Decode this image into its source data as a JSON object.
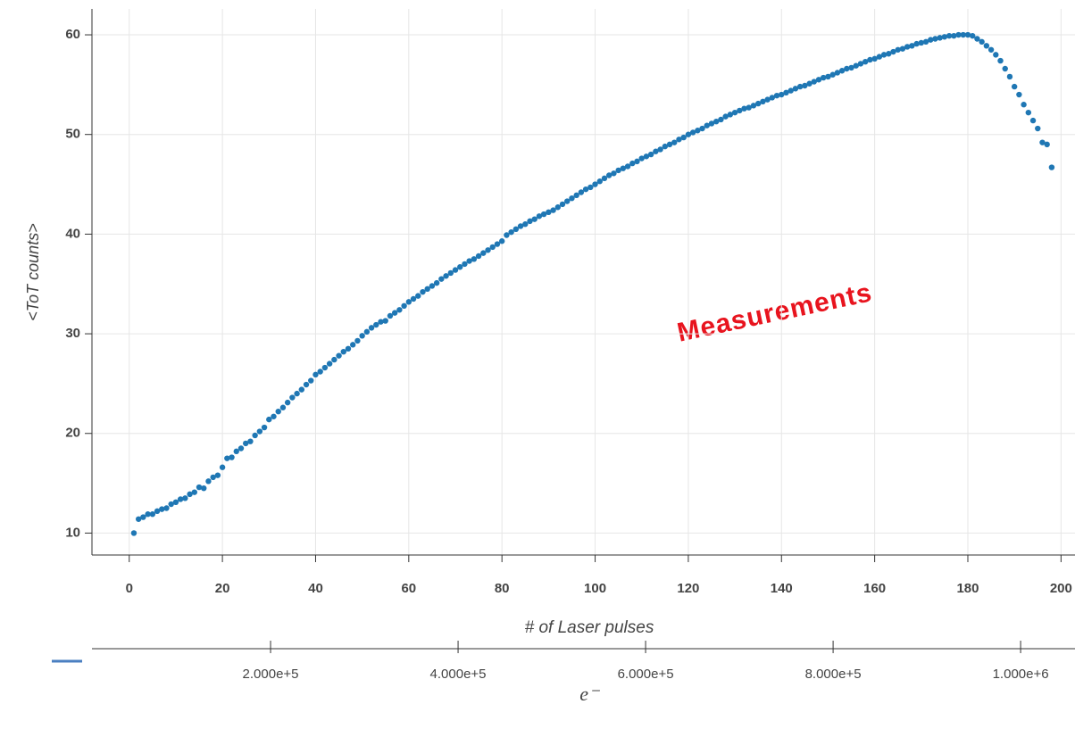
{
  "chart_data": {
    "type": "scatter",
    "annotation": "Measurements",
    "xlabel": "# of Laser pulses",
    "ylabel": "<ToT counts>",
    "x2label": "e⁻",
    "color": "#1f77b4",
    "grid": true,
    "xlim": [
      -8,
      203
    ],
    "ylim": [
      7.8,
      62.6
    ],
    "xticks": [
      0,
      20,
      40,
      60,
      80,
      100,
      120,
      140,
      160,
      180,
      200
    ],
    "yticks": [
      10,
      20,
      30,
      40,
      50,
      60
    ],
    "x2lim": [
      9500,
      1058000
    ],
    "x2ticks": [
      {
        "value": 200000,
        "label": "2.000e+5"
      },
      {
        "value": 400000,
        "label": "4.000e+5"
      },
      {
        "value": 600000,
        "label": "6.000e+5"
      },
      {
        "value": 800000,
        "label": "8.000e+5"
      },
      {
        "value": 1000000,
        "label": "1.000e+6"
      }
    ],
    "x": [
      1,
      2,
      3,
      4,
      5,
      6,
      7,
      8,
      9,
      10,
      11,
      12,
      13,
      14,
      15,
      16,
      17,
      18,
      19,
      20,
      21,
      22,
      23,
      24,
      25,
      26,
      27,
      28,
      29,
      30,
      31,
      32,
      33,
      34,
      35,
      36,
      37,
      38,
      39,
      40,
      41,
      42,
      43,
      44,
      45,
      46,
      47,
      48,
      49,
      50,
      51,
      52,
      53,
      54,
      55,
      56,
      57,
      58,
      59,
      60,
      61,
      62,
      63,
      64,
      65,
      66,
      67,
      68,
      69,
      70,
      71,
      72,
      73,
      74,
      75,
      76,
      77,
      78,
      79,
      80,
      81,
      82,
      83,
      84,
      85,
      86,
      87,
      88,
      89,
      90,
      91,
      92,
      93,
      94,
      95,
      96,
      97,
      98,
      99,
      100,
      101,
      102,
      103,
      104,
      105,
      106,
      107,
      108,
      109,
      110,
      111,
      112,
      113,
      114,
      115,
      116,
      117,
      118,
      119,
      120,
      121,
      122,
      123,
      124,
      125,
      126,
      127,
      128,
      129,
      130,
      131,
      132,
      133,
      134,
      135,
      136,
      137,
      138,
      139,
      140,
      141,
      142,
      143,
      144,
      145,
      146,
      147,
      148,
      149,
      150,
      151,
      152,
      153,
      154,
      155,
      156,
      157,
      158,
      159,
      160,
      161,
      162,
      163,
      164,
      165,
      166,
      167,
      168,
      169,
      170,
      171,
      172,
      173,
      174,
      175,
      176,
      177,
      178,
      179,
      180,
      181,
      182,
      183,
      184,
      185,
      186,
      187,
      188,
      189,
      190,
      191,
      192,
      193,
      194,
      195,
      196,
      197,
      198
    ],
    "values": [
      10.0,
      11.4,
      11.6,
      11.9,
      11.9,
      12.2,
      12.4,
      12.5,
      12.9,
      13.1,
      13.4,
      13.5,
      13.9,
      14.1,
      14.6,
      14.5,
      15.2,
      15.6,
      15.8,
      16.6,
      17.5,
      17.6,
      18.2,
      18.5,
      19.0,
      19.2,
      19.8,
      20.2,
      20.6,
      21.4,
      21.7,
      22.2,
      22.6,
      23.1,
      23.6,
      24.0,
      24.4,
      24.9,
      25.3,
      25.9,
      26.2,
      26.6,
      27.0,
      27.4,
      27.8,
      28.2,
      28.5,
      28.9,
      29.3,
      29.8,
      30.2,
      30.6,
      30.9,
      31.2,
      31.3,
      31.8,
      32.1,
      32.4,
      32.8,
      33.2,
      33.5,
      33.8,
      34.2,
      34.5,
      34.8,
      35.1,
      35.5,
      35.8,
      36.1,
      36.4,
      36.7,
      37.0,
      37.3,
      37.5,
      37.8,
      38.1,
      38.4,
      38.7,
      39.0,
      39.3,
      39.9,
      40.2,
      40.5,
      40.8,
      41.0,
      41.3,
      41.5,
      41.8,
      42.0,
      42.2,
      42.4,
      42.7,
      43.0,
      43.3,
      43.6,
      43.9,
      44.2,
      44.5,
      44.7,
      45.0,
      45.3,
      45.6,
      45.9,
      46.1,
      46.4,
      46.6,
      46.8,
      47.1,
      47.3,
      47.6,
      47.8,
      48.0,
      48.3,
      48.5,
      48.8,
      49.0,
      49.2,
      49.5,
      49.7,
      50.0,
      50.2,
      50.4,
      50.6,
      50.9,
      51.1,
      51.3,
      51.5,
      51.8,
      52.0,
      52.2,
      52.4,
      52.6,
      52.7,
      52.9,
      53.1,
      53.3,
      53.5,
      53.7,
      53.9,
      54.0,
      54.2,
      54.4,
      54.6,
      54.8,
      54.9,
      55.1,
      55.3,
      55.5,
      55.7,
      55.8,
      56.0,
      56.2,
      56.4,
      56.6,
      56.7,
      56.9,
      57.1,
      57.3,
      57.5,
      57.6,
      57.8,
      58.0,
      58.1,
      58.3,
      58.5,
      58.6,
      58.8,
      58.9,
      59.1,
      59.2,
      59.3,
      59.5,
      59.6,
      59.7,
      59.8,
      59.9,
      59.9,
      60.0,
      60.0,
      60.0,
      59.9,
      59.6,
      59.3,
      58.9,
      58.5,
      58.0,
      57.4,
      56.6,
      55.8,
      54.8,
      54.0,
      53.0,
      52.2,
      51.4,
      50.6,
      49.2,
      49.0,
      46.7
    ]
  }
}
